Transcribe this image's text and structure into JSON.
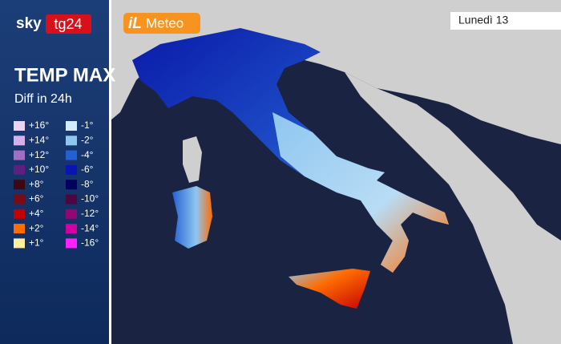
{
  "header": {
    "brand": "sky",
    "channel": "tg24",
    "partner_prefix": "iL",
    "partner": "Meteo",
    "date": "Lunedì 13"
  },
  "legend": {
    "title": "TEMP MAX",
    "subtitle": "Diff in 24h",
    "warmer": [
      {
        "label": "+16°",
        "color": "#ead4f2"
      },
      {
        "label": "+14°",
        "color": "#d7b0ea"
      },
      {
        "label": "+12°",
        "color": "#a26ec4"
      },
      {
        "label": "+10°",
        "color": "#5e1f80"
      },
      {
        "label": "+8°",
        "color": "#3e0812"
      },
      {
        "label": "+6°",
        "color": "#7c0a14"
      },
      {
        "label": "+4°",
        "color": "#c40000"
      },
      {
        "label": "+2°",
        "color": "#ff6c00"
      },
      {
        "label": "+1°",
        "color": "#fff0a0"
      }
    ],
    "colder": [
      {
        "label": "-1°",
        "color": "#d2ebff"
      },
      {
        "label": "-2°",
        "color": "#8fc6f0"
      },
      {
        "label": "-4°",
        "color": "#2361d2"
      },
      {
        "label": "-6°",
        "color": "#0a14b4"
      },
      {
        "label": "-8°",
        "color": "#02025e"
      },
      {
        "label": "-10°",
        "color": "#4e0640"
      },
      {
        "label": "-12°",
        "color": "#920872"
      },
      {
        "label": "-14°",
        "color": "#d200a4"
      },
      {
        "label": "-16°",
        "color": "#ff22ff"
      }
    ]
  }
}
